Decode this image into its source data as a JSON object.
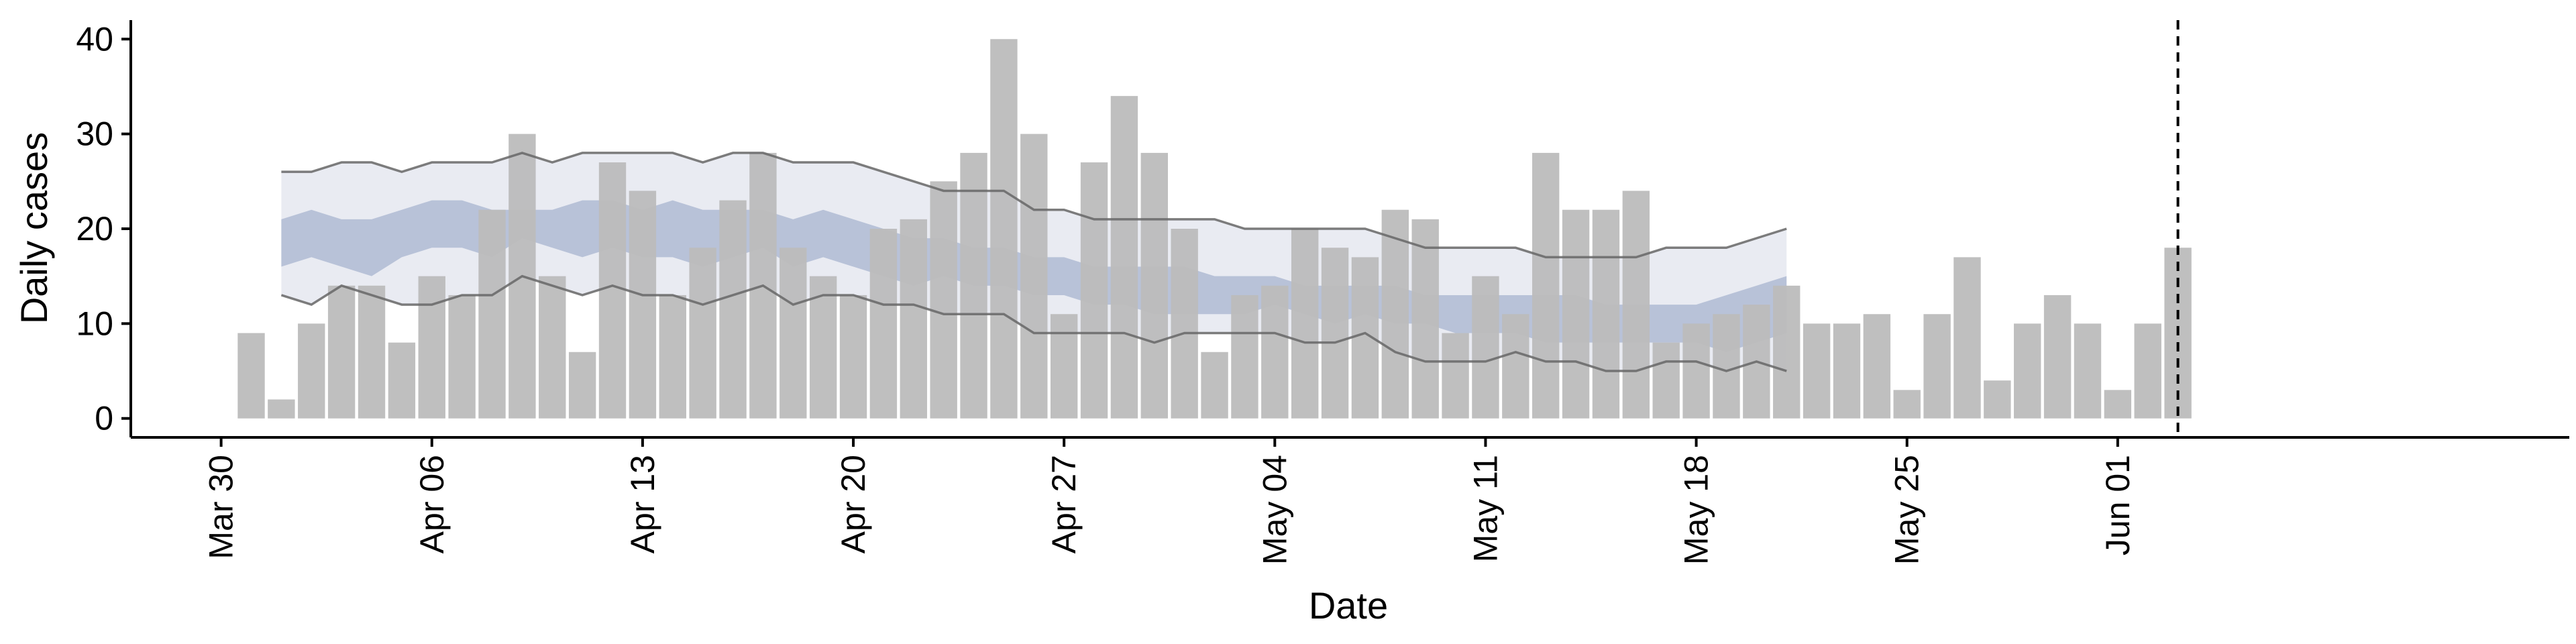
{
  "chart_data": {
    "type": "bar",
    "xlabel": "Date",
    "ylabel": "Daily cases",
    "x_axis": {
      "type": "date",
      "range": [
        "2020-03-27",
        "2020-06-16"
      ],
      "ticks": [
        "2020-03-30",
        "2020-04-06",
        "2020-04-13",
        "2020-04-20",
        "2020-04-27",
        "2020-05-04",
        "2020-05-11",
        "2020-05-18",
        "2020-05-25",
        "2020-06-01"
      ],
      "tick_labels": [
        "Mar 30",
        "Apr 06",
        "Apr 13",
        "Apr 20",
        "Apr 27",
        "May 04",
        "May 11",
        "May 18",
        "May 25",
        "Jun 01"
      ]
    },
    "y_axis": {
      "range": [
        -2,
        42
      ],
      "ticks": [
        0,
        10,
        20,
        30,
        40
      ]
    },
    "grid": false,
    "colors": {
      "bars": "#bcbcbc",
      "outer_band": "#e9ebf2",
      "inner_band": "#b8c2d8",
      "band_edge_lines": "#666666",
      "vertical_line": "#000000"
    },
    "series": [
      {
        "kind": "bar",
        "start_date": "2020-03-31",
        "values": [
          9,
          2,
          10,
          14,
          14,
          8,
          15,
          13,
          22,
          30,
          15,
          7,
          27,
          24,
          13,
          18,
          23,
          28,
          18,
          15,
          13,
          20,
          21,
          25,
          28,
          40,
          30,
          11,
          27,
          34,
          28,
          20,
          7,
          13,
          14,
          20,
          18,
          17,
          22,
          21,
          9,
          15,
          11,
          28,
          22,
          22,
          24,
          8,
          10,
          11,
          12,
          14,
          10,
          10,
          11,
          3,
          11,
          17,
          4,
          10,
          13,
          10,
          3,
          10,
          18
        ]
      },
      {
        "kind": "band",
        "start_date": "2020-04-01",
        "lower_outer": [
          13,
          12,
          14,
          13,
          12,
          12,
          13,
          13,
          15,
          14,
          13,
          14,
          13,
          13,
          12,
          13,
          14,
          12,
          13,
          13,
          12,
          12,
          11,
          11,
          11,
          9,
          9,
          9,
          9,
          8,
          9,
          9,
          9,
          9,
          8,
          8,
          9,
          7,
          6,
          6,
          6,
          7,
          6,
          6,
          5,
          5,
          6,
          6,
          5,
          6,
          5
        ],
        "upper_outer": [
          26,
          26,
          27,
          27,
          26,
          27,
          27,
          27,
          28,
          27,
          28,
          28,
          28,
          28,
          27,
          28,
          28,
          27,
          27,
          27,
          26,
          25,
          24,
          24,
          24,
          22,
          22,
          21,
          21,
          21,
          21,
          21,
          20,
          20,
          20,
          20,
          20,
          19,
          18,
          18,
          18,
          18,
          17,
          17,
          17,
          17,
          18,
          18,
          18,
          19,
          20
        ],
        "lower_inner": [
          16,
          17,
          16,
          15,
          17,
          18,
          18,
          17,
          19,
          18,
          17,
          18,
          17,
          17,
          16,
          17,
          18,
          16,
          17,
          16,
          15,
          14,
          15,
          14,
          14,
          13,
          13,
          12,
          12,
          11,
          11,
          11,
          11,
          12,
          11,
          10,
          11,
          10,
          10,
          9,
          9,
          9,
          8,
          8,
          8,
          8,
          8,
          8,
          7,
          8,
          9
        ],
        "upper_inner": [
          21,
          22,
          21,
          21,
          22,
          23,
          23,
          22,
          22,
          22,
          23,
          23,
          22,
          23,
          22,
          22,
          22,
          21,
          22,
          21,
          20,
          19,
          19,
          18,
          18,
          17,
          17,
          16,
          16,
          16,
          16,
          15,
          15,
          15,
          14,
          14,
          14,
          14,
          13,
          13,
          13,
          13,
          13,
          13,
          12,
          12,
          12,
          12,
          13,
          14,
          15
        ]
      },
      {
        "kind": "vline",
        "x": "2020-06-03"
      }
    ]
  }
}
